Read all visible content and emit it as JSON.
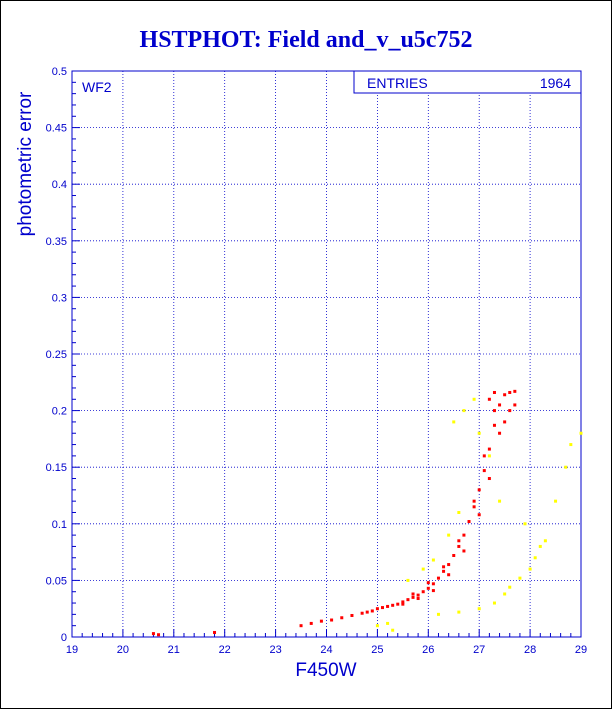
{
  "chart_data": {
    "type": "scatter",
    "title": "HSTPHOT: Field and_v_u5c752",
    "xlabel": "F450W",
    "ylabel": "photometric error",
    "xlim": [
      19,
      29
    ],
    "ylim": [
      0,
      0.5
    ],
    "x_ticks": [
      "19",
      "20",
      "21",
      "22",
      "23",
      "24",
      "25",
      "26",
      "27",
      "28",
      "29"
    ],
    "y_ticks": [
      "0",
      "0.05",
      "0.1",
      "0.15",
      "0.2",
      "0.25",
      "0.3",
      "0.35",
      "0.4",
      "0.45",
      "0.5"
    ],
    "grid": true,
    "annotation": "WF2",
    "stats_box": {
      "label": "ENTRIES",
      "value": "1964"
    },
    "colors": {
      "main": "#ff0000",
      "secondary": "#ffff00",
      "axis": "#0000cc",
      "grid": "#0000cc"
    },
    "series": [
      {
        "color": "#ff0000",
        "points": [
          [
            20.6,
            0.003
          ],
          [
            20.7,
            0.002
          ],
          [
            21.8,
            0.004
          ],
          [
            23.5,
            0.01
          ],
          [
            23.7,
            0.012
          ],
          [
            23.9,
            0.014
          ],
          [
            24.1,
            0.015
          ],
          [
            24.3,
            0.017
          ],
          [
            24.5,
            0.019
          ],
          [
            24.7,
            0.021
          ],
          [
            24.8,
            0.022
          ],
          [
            24.9,
            0.023
          ],
          [
            25.0,
            0.025
          ],
          [
            25.1,
            0.026
          ],
          [
            25.2,
            0.027
          ],
          [
            25.3,
            0.028
          ],
          [
            25.4,
            0.029
          ],
          [
            25.5,
            0.031
          ],
          [
            25.6,
            0.033
          ],
          [
            25.7,
            0.035
          ],
          [
            25.8,
            0.037
          ],
          [
            25.9,
            0.04
          ],
          [
            26.0,
            0.043
          ],
          [
            26.1,
            0.047
          ],
          [
            26.2,
            0.052
          ],
          [
            26.3,
            0.058
          ],
          [
            26.4,
            0.064
          ],
          [
            26.5,
            0.072
          ],
          [
            26.6,
            0.08
          ],
          [
            26.7,
            0.09
          ],
          [
            26.8,
            0.102
          ],
          [
            26.9,
            0.115
          ],
          [
            27.0,
            0.13
          ],
          [
            27.1,
            0.147
          ],
          [
            27.2,
            0.166
          ],
          [
            27.3,
            0.187
          ],
          [
            27.4,
            0.205
          ],
          [
            27.5,
            0.214
          ],
          [
            27.6,
            0.216
          ],
          [
            27.7,
            0.217
          ],
          [
            25.5,
            0.029
          ],
          [
            25.7,
            0.038
          ],
          [
            25.8,
            0.034
          ],
          [
            26.0,
            0.048
          ],
          [
            26.1,
            0.041
          ],
          [
            26.3,
            0.062
          ],
          [
            26.4,
            0.055
          ],
          [
            26.6,
            0.085
          ],
          [
            26.7,
            0.076
          ],
          [
            26.9,
            0.12
          ],
          [
            27.0,
            0.108
          ],
          [
            27.1,
            0.16
          ],
          [
            27.2,
            0.14
          ],
          [
            27.3,
            0.2
          ],
          [
            27.4,
            0.18
          ],
          [
            27.5,
            0.19
          ],
          [
            27.6,
            0.2
          ],
          [
            27.2,
            0.21
          ],
          [
            27.3,
            0.216
          ],
          [
            27.7,
            0.205
          ]
        ]
      },
      {
        "color": "#ffff00",
        "points": [
          [
            25.2,
            0.012
          ],
          [
            25.6,
            0.05
          ],
          [
            25.9,
            0.06
          ],
          [
            26.1,
            0.068
          ],
          [
            26.4,
            0.09
          ],
          [
            26.6,
            0.11
          ],
          [
            26.5,
            0.19
          ],
          [
            26.7,
            0.2
          ],
          [
            26.9,
            0.21
          ],
          [
            27.0,
            0.18
          ],
          [
            26.2,
            0.02
          ],
          [
            26.6,
            0.022
          ],
          [
            27.0,
            0.025
          ],
          [
            27.3,
            0.03
          ],
          [
            27.5,
            0.038
          ],
          [
            27.6,
            0.044
          ],
          [
            27.8,
            0.052
          ],
          [
            28.0,
            0.06
          ],
          [
            28.1,
            0.07
          ],
          [
            28.3,
            0.085
          ],
          [
            28.5,
            0.12
          ],
          [
            28.7,
            0.15
          ],
          [
            28.8,
            0.17
          ],
          [
            29.0,
            0.18
          ],
          [
            27.9,
            0.1
          ],
          [
            25.3,
            0.006
          ],
          [
            25.0,
            0.01
          ],
          [
            27.4,
            0.12
          ],
          [
            28.2,
            0.08
          ],
          [
            27.2,
            0.16
          ]
        ]
      }
    ]
  }
}
